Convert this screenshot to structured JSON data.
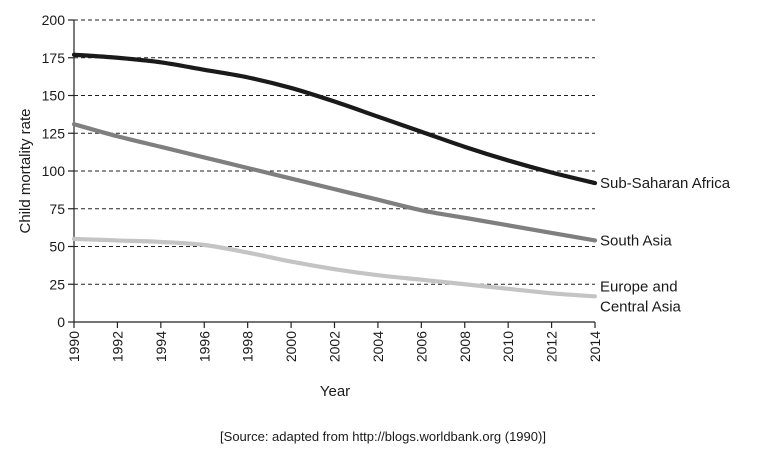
{
  "chart_data": {
    "type": "line",
    "title": "",
    "xlabel": "Year",
    "ylabel": "Child mortality rate",
    "x": [
      1990,
      1992,
      1994,
      1996,
      1998,
      2000,
      2002,
      2004,
      2006,
      2008,
      2010,
      2012,
      2014
    ],
    "x_ticks": [
      "1990",
      "1992",
      "1994",
      "1996",
      "1998",
      "2000",
      "2002",
      "2004",
      "2006",
      "2008",
      "2010",
      "2012",
      "2014"
    ],
    "y_ticks": [
      "0",
      "25",
      "50",
      "75",
      "100",
      "125",
      "150",
      "175",
      "200"
    ],
    "xlim": [
      1990,
      2014
    ],
    "ylim": [
      0,
      200
    ],
    "grid": "horizontal dashed",
    "series": [
      {
        "name": "Sub-Saharan Africa",
        "label_lines": [
          "Sub-Saharan Africa"
        ],
        "color": "#1a1a1a",
        "values": [
          177,
          175,
          172,
          167,
          162,
          155,
          146,
          136,
          126,
          116,
          107,
          99,
          92
        ]
      },
      {
        "name": "South Asia",
        "label_lines": [
          "South Asia"
        ],
        "color": "#7f7f7f",
        "values": [
          131,
          123,
          116,
          109,
          102,
          95,
          88,
          81,
          74,
          69,
          64,
          59,
          54
        ]
      },
      {
        "name": "Europe and Central Asia",
        "label_lines": [
          "Europe and",
          "Central Asia"
        ],
        "color": "#c4c4c4",
        "values": [
          55,
          54,
          53,
          51,
          46,
          40,
          35,
          31,
          28,
          25,
          22,
          19,
          17
        ]
      }
    ]
  },
  "source_note": "[Source: adapted from http://blogs.worldbank.org (1990)]"
}
